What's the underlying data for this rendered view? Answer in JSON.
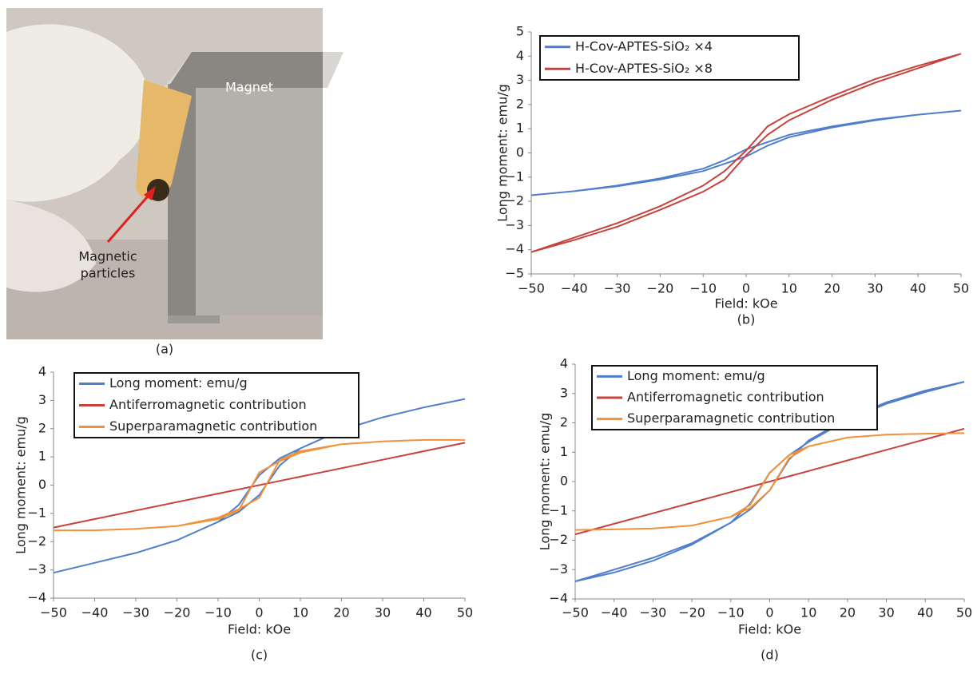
{
  "photo": {
    "labels": [
      "Magnet",
      "Magnetic",
      "particles"
    ],
    "caption": "(a)"
  },
  "chart_data": [
    {
      "type": "line",
      "caption": "(b)",
      "xlabel": "Field: kOe",
      "ylabel": "Long moment: emu/g",
      "x": [
        -50,
        -40,
        -30,
        -20,
        -10,
        -5,
        0,
        5,
        10,
        20,
        30,
        40,
        50,
        40,
        30,
        20,
        10,
        5,
        0,
        -5,
        -10,
        -20,
        -30,
        -40,
        -50
      ],
      "xlim": [
        -50,
        50
      ],
      "ylim": [
        -5,
        5
      ],
      "xticks": [
        {
          "value": -50,
          "label": "−50"
        },
        {
          "value": -40,
          "label": "−40"
        },
        {
          "value": -30,
          "label": "−30"
        },
        {
          "value": -20,
          "label": "−20"
        },
        {
          "value": -10,
          "label": "−10"
        },
        0,
        10,
        20,
        30,
        40,
        50
      ],
      "yticks": [
        {
          "value": -5,
          "label": "−5"
        },
        {
          "value": -4,
          "label": "−4"
        },
        {
          "value": -3,
          "label": "−3"
        },
        {
          "value": -2,
          "label": "−2"
        },
        {
          "value": -1,
          "label": "−1"
        },
        0,
        1,
        2,
        3,
        4,
        5
      ],
      "series": [
        {
          "name": "H-Cov-APTES-SiO₂ ×4",
          "color": "#4f7fcc",
          "values": [
            -1.75,
            -1.58,
            -1.38,
            -1.1,
            -0.75,
            -0.45,
            -0.15,
            0.3,
            0.65,
            1.05,
            1.35,
            1.58,
            1.75,
            1.58,
            1.38,
            1.1,
            0.75,
            0.45,
            0.15,
            -0.3,
            -0.65,
            -1.05,
            -1.35,
            -1.58,
            -1.75
          ]
        },
        {
          "name": "H-Cov-APTES-SiO₂ ×8",
          "color": "#c8423c",
          "values": [
            -4.1,
            -3.6,
            -3.05,
            -2.35,
            -1.6,
            -1.1,
            -0.1,
            0.75,
            1.35,
            2.2,
            2.9,
            3.5,
            4.1,
            3.6,
            3.05,
            2.35,
            1.6,
            1.1,
            0.1,
            -0.75,
            -1.35,
            -2.2,
            -2.9,
            -3.5,
            -4.1
          ]
        }
      ]
    },
    {
      "type": "line",
      "caption": "(c)",
      "xlabel": "Field: kOe",
      "ylabel": "Long moment: emu/g",
      "x": [
        -50,
        -40,
        -30,
        -20,
        -10,
        -5,
        0,
        5,
        10,
        20,
        30,
        40,
        50,
        40,
        30,
        20,
        10,
        5,
        0,
        -5,
        -10,
        -20,
        -30,
        -40,
        -50
      ],
      "xlim": [
        -50,
        50
      ],
      "ylim": [
        -4,
        4
      ],
      "xticks": [
        {
          "value": -50,
          "label": "−50"
        },
        {
          "value": -40,
          "label": "−40"
        },
        {
          "value": -30,
          "label": "−30"
        },
        {
          "value": -20,
          "label": "−20"
        },
        {
          "value": -10,
          "label": "−10"
        },
        0,
        10,
        20,
        30,
        40,
        50
      ],
      "yticks": [
        {
          "value": -4,
          "label": "−4"
        },
        {
          "value": -3,
          "label": "−3"
        },
        {
          "value": -2,
          "label": "−2"
        },
        {
          "value": -1,
          "label": "−1"
        },
        0,
        1,
        2,
        3,
        4
      ],
      "series": [
        {
          "name": "Long moment: emu/g",
          "color": "#4f7fcc",
          "values": [
            -3.1,
            -2.75,
            -2.4,
            -1.95,
            -1.3,
            -0.95,
            -0.35,
            0.7,
            1.3,
            1.95,
            2.4,
            2.75,
            3.05,
            2.75,
            2.4,
            1.95,
            1.3,
            0.95,
            0.35,
            -0.7,
            -1.3,
            -1.95,
            -2.4,
            -2.75,
            -3.1
          ]
        },
        {
          "name": "Antiferromagnetic contribution",
          "color": "#c8423c",
          "values": [
            -1.5,
            -1.2,
            -0.9,
            -0.6,
            -0.3,
            -0.15,
            0,
            0.15,
            0.3,
            0.6,
            0.9,
            1.2,
            1.5,
            1.2,
            0.9,
            0.6,
            0.3,
            0.15,
            0,
            -0.15,
            -0.3,
            -0.6,
            -0.9,
            -1.2,
            -1.5
          ]
        },
        {
          "name": "Superparamagnetic contribution",
          "color": "#f0923a",
          "values": [
            -1.6,
            -1.6,
            -1.55,
            -1.45,
            -1.15,
            -0.85,
            -0.45,
            0.9,
            1.2,
            1.45,
            1.55,
            1.6,
            1.6,
            1.6,
            1.55,
            1.45,
            1.15,
            0.85,
            0.45,
            -0.9,
            -1.2,
            -1.45,
            -1.55,
            -1.6,
            -1.6
          ]
        }
      ]
    },
    {
      "type": "line",
      "caption": "(d)",
      "xlabel": "Field: kOe",
      "ylabel": "Long moment: emu/g",
      "x": [
        -50,
        -40,
        -30,
        -20,
        -10,
        -5,
        0,
        5,
        10,
        20,
        30,
        40,
        50,
        40,
        30,
        20,
        10,
        5,
        0,
        -5,
        -10,
        -20,
        -30,
        -40,
        -50
      ],
      "xlim": [
        -50,
        50
      ],
      "ylim": [
        -4,
        4
      ],
      "xticks": [
        {
          "value": -50,
          "label": "−50"
        },
        {
          "value": -40,
          "label": "−40"
        },
        {
          "value": -30,
          "label": "−30"
        },
        {
          "value": -20,
          "label": "−20"
        },
        {
          "value": -10,
          "label": "−10"
        },
        0,
        10,
        20,
        30,
        40,
        50
      ],
      "yticks": [
        {
          "value": -4,
          "label": "−4"
        },
        {
          "value": -3,
          "label": "−3"
        },
        {
          "value": -2,
          "label": "−2"
        },
        {
          "value": -1,
          "label": "−1"
        },
        0,
        1,
        2,
        3,
        4
      ],
      "series": [
        {
          "name": "Long moment: emu/g",
          "color": "#4f7fcc",
          "values": [
            -3.4,
            -3.0,
            -2.6,
            -2.1,
            -1.4,
            -0.95,
            -0.3,
            0.75,
            1.4,
            2.15,
            2.7,
            3.1,
            3.4,
            3.05,
            2.65,
            2.1,
            1.35,
            0.9,
            0.3,
            -0.75,
            -1.4,
            -2.15,
            -2.7,
            -3.1,
            -3.4
          ]
        },
        {
          "name": "Antiferromagnetic contribution",
          "color": "#c8423c",
          "values": [
            -1.8,
            -1.44,
            -1.08,
            -0.72,
            -0.36,
            -0.18,
            0,
            0.18,
            0.36,
            0.72,
            1.08,
            1.44,
            1.8,
            1.44,
            1.08,
            0.72,
            0.36,
            0.18,
            0,
            -0.18,
            -0.36,
            -0.72,
            -1.08,
            -1.44,
            -1.8
          ]
        },
        {
          "name": "Superparamagnetic contribution",
          "color": "#f0923a",
          "values": [
            -1.65,
            -1.63,
            -1.6,
            -1.5,
            -1.2,
            -0.9,
            -0.3,
            0.8,
            1.2,
            1.5,
            1.6,
            1.63,
            1.65,
            1.63,
            1.6,
            1.5,
            1.2,
            0.9,
            0.3,
            -0.8,
            -1.2,
            -1.5,
            -1.6,
            -1.63,
            -1.65
          ]
        }
      ]
    }
  ]
}
